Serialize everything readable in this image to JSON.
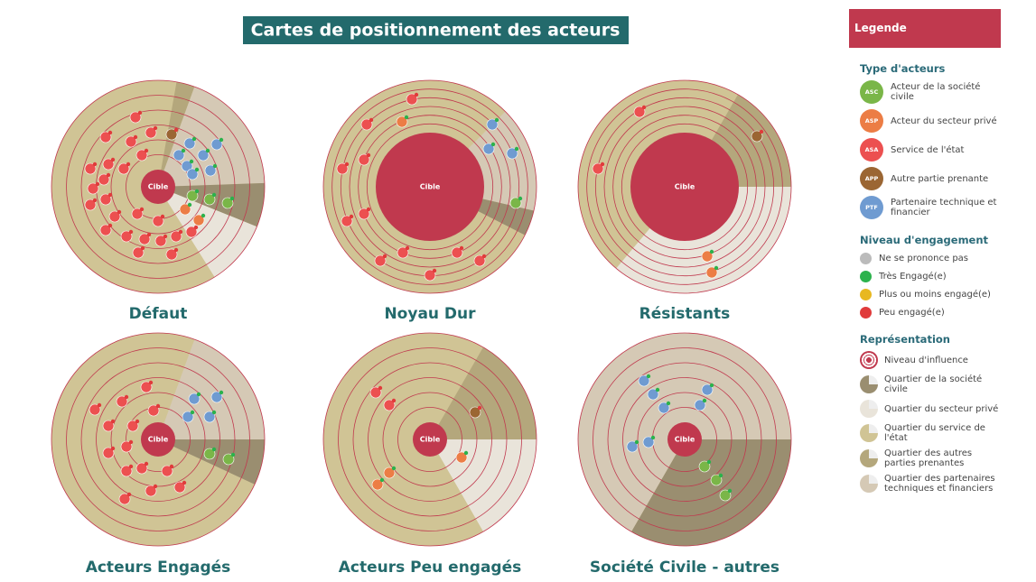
{
  "header": {
    "title": "Cartes de positionnement des acteurs"
  },
  "maps": [
    {
      "title": "Défaut",
      "center": "Cible"
    },
    {
      "title": "Noyau Dur",
      "center": "Cible"
    },
    {
      "title": "Résistants",
      "center": "Cible"
    },
    {
      "title": "Acteurs Engagés",
      "center": "Cible"
    },
    {
      "title": "Acteurs Peu engagés",
      "center": "Cible"
    },
    {
      "title": "Société Civile - autres",
      "center": "Cible"
    }
  ],
  "legend": {
    "title": "Legende",
    "types": {
      "title": "Type d'acteurs",
      "items": [
        {
          "badge": "ASC",
          "label": "Acteur de la société civile"
        },
        {
          "badge": "ASP",
          "label": "Acteur du secteur privé"
        },
        {
          "badge": "ASA",
          "label": "Service de l'état"
        },
        {
          "badge": "APP",
          "label": "Autre partie prenante"
        },
        {
          "badge": "PTF",
          "label": "Partenaire technique et financier"
        }
      ]
    },
    "engagement": {
      "title": "Niveau d'engagement",
      "items": [
        "Ne se prononce pas",
        "Très Engagé(e)",
        "Plus ou moins engagé(e)",
        "Peu engagé(e)"
      ]
    },
    "representation": {
      "title": "Représentation",
      "items": [
        "Niveau d'influence",
        "Quartier de la société civile",
        "Quartier du secteur privé",
        "Quartier du service de l'état",
        "Quartier des autres parties prenantes",
        "Quartier des partenaires techniques et financiers"
      ]
    }
  }
}
